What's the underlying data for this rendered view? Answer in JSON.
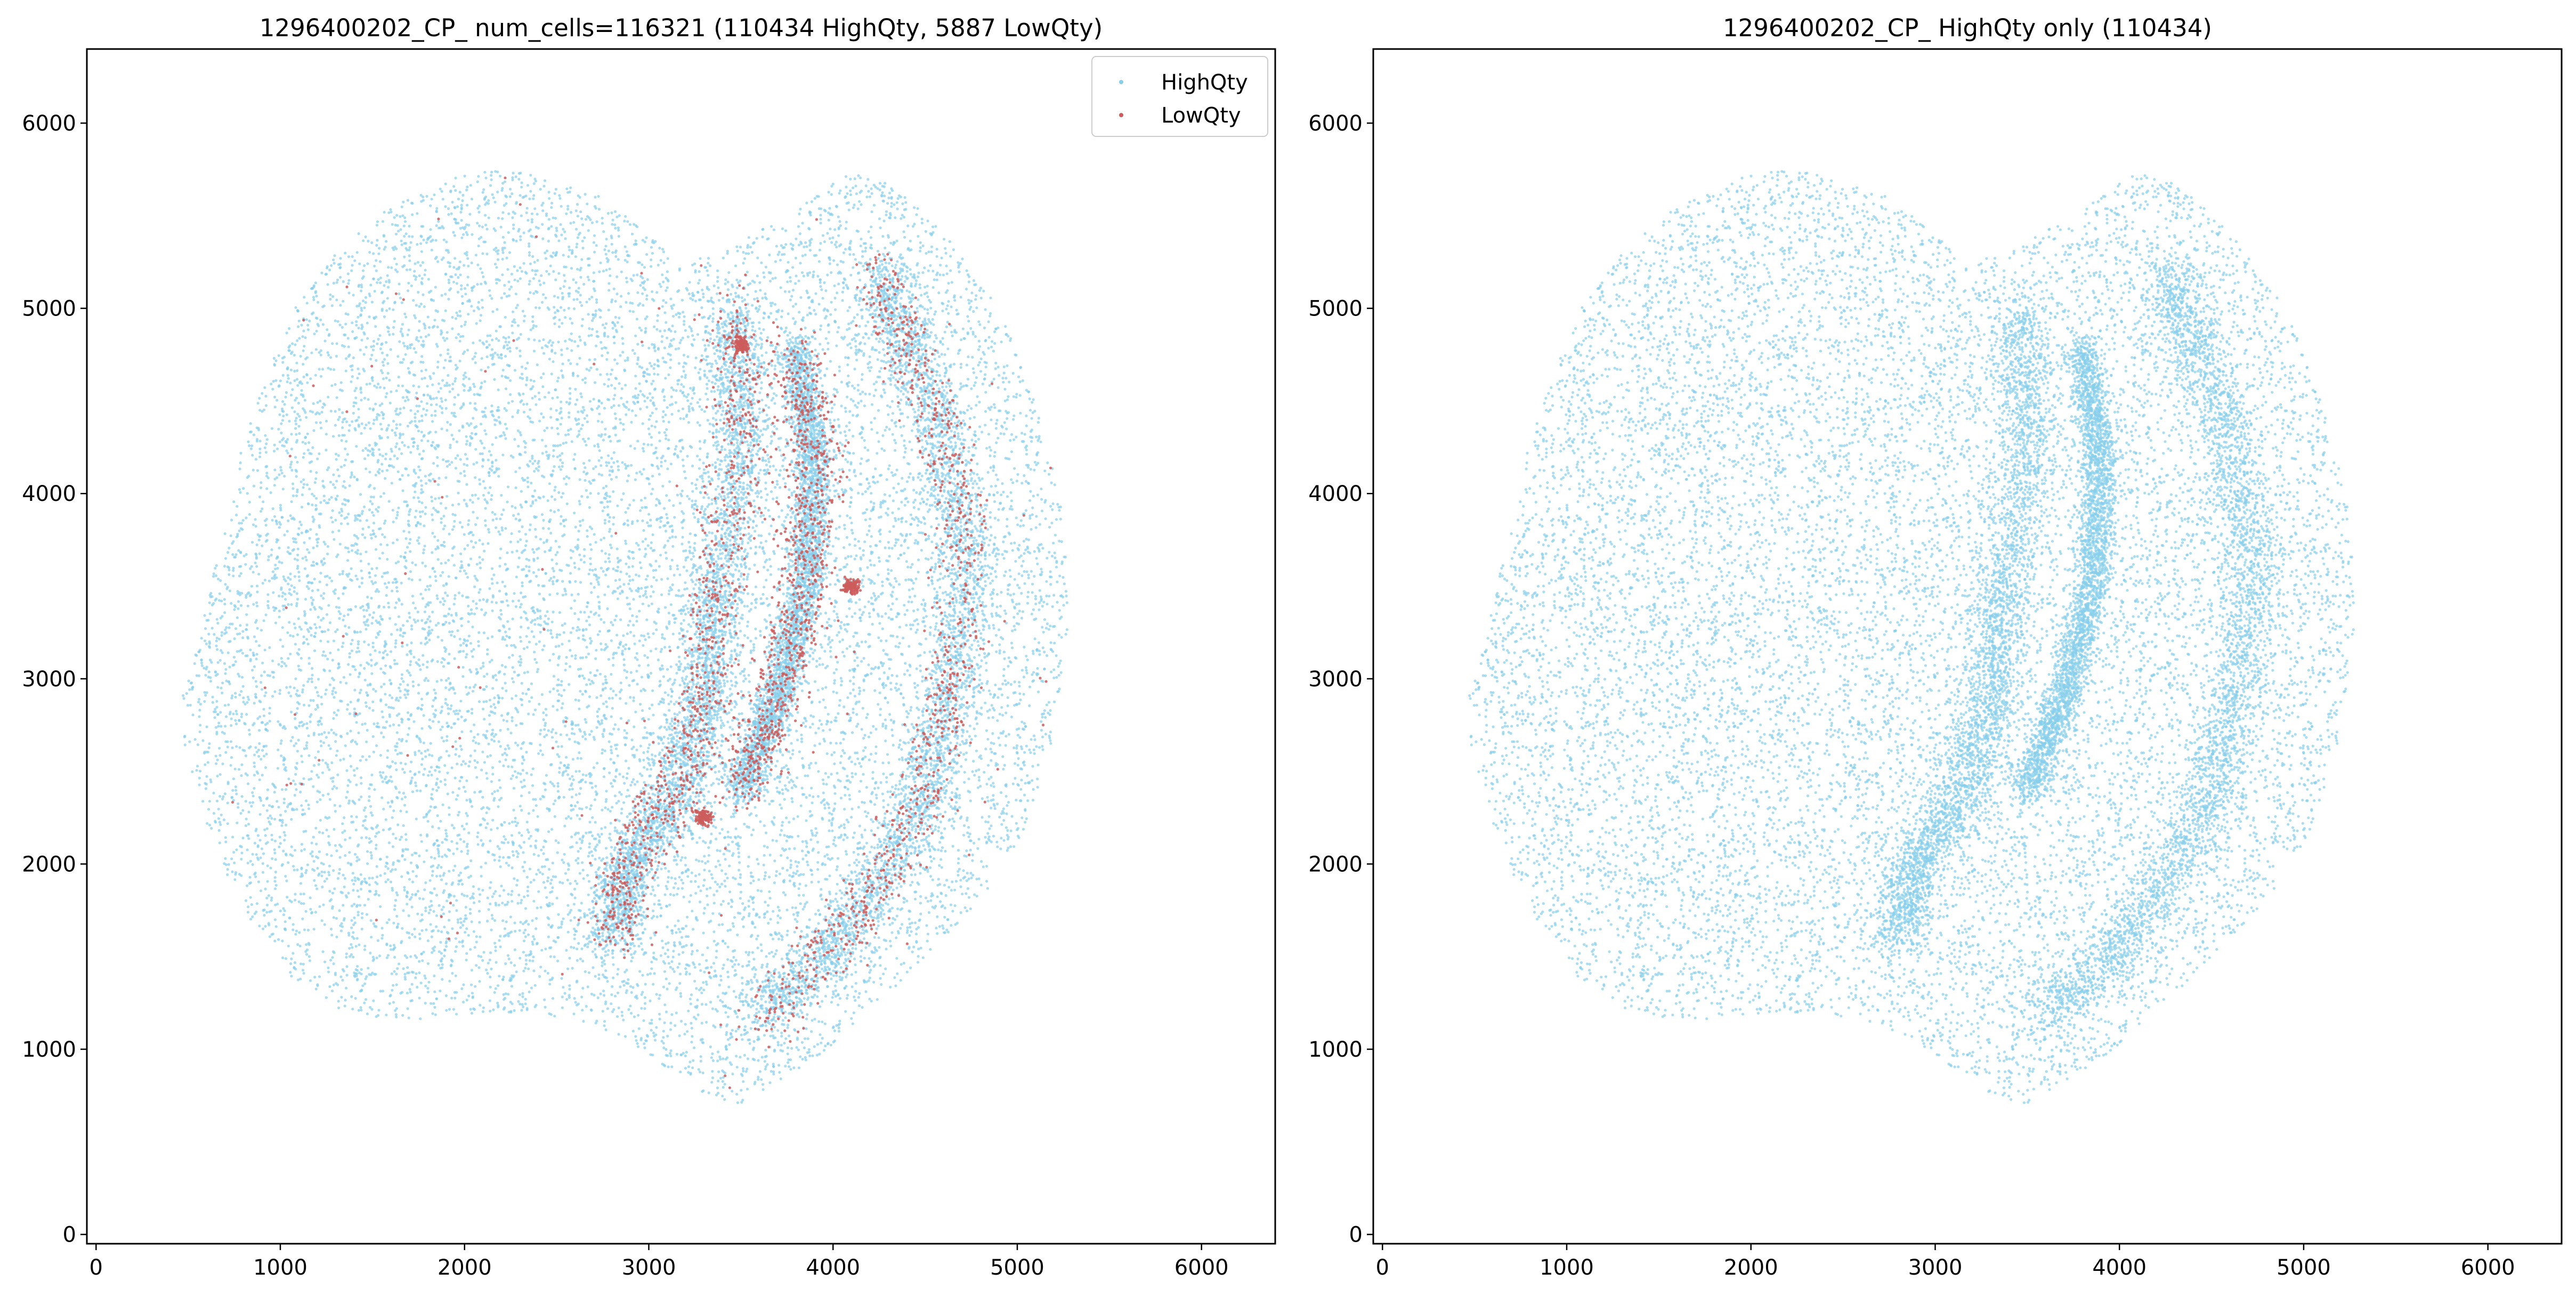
{
  "chart_data": [
    {
      "type": "scatter",
      "title": "1296400202_CP_ num_cells=116321 (110434 HighQty, 5887 LowQty)",
      "xlabel": "",
      "ylabel": "",
      "xlim": [
        -50,
        6400
      ],
      "ylim": [
        -50,
        6400
      ],
      "xticks": [
        0,
        1000,
        2000,
        3000,
        4000,
        5000,
        6000
      ],
      "yticks": [
        0,
        1000,
        2000,
        3000,
        4000,
        5000,
        6000
      ],
      "grid": false,
      "legend": {
        "placement": "top-right",
        "entries": [
          "HighQty",
          "LowQty"
        ]
      },
      "series": [
        {
          "name": "HighQty",
          "color": "#87CEEB",
          "count": 110434
        },
        {
          "name": "LowQty",
          "color": "#CD5C5C",
          "count": 5887
        }
      ]
    },
    {
      "type": "scatter",
      "title": "1296400202_CP_ HighQty only (110434)",
      "xlabel": "",
      "ylabel": "",
      "xlim": [
        -50,
        6400
      ],
      "ylim": [
        -50,
        6400
      ],
      "xticks": [
        0,
        1000,
        2000,
        3000,
        4000,
        5000,
        6000
      ],
      "yticks": [
        0,
        1000,
        2000,
        3000,
        4000,
        5000,
        6000
      ],
      "grid": false,
      "series": [
        {
          "name": "HighQty",
          "color": "#87CEEB",
          "count": 110434
        }
      ]
    }
  ]
}
